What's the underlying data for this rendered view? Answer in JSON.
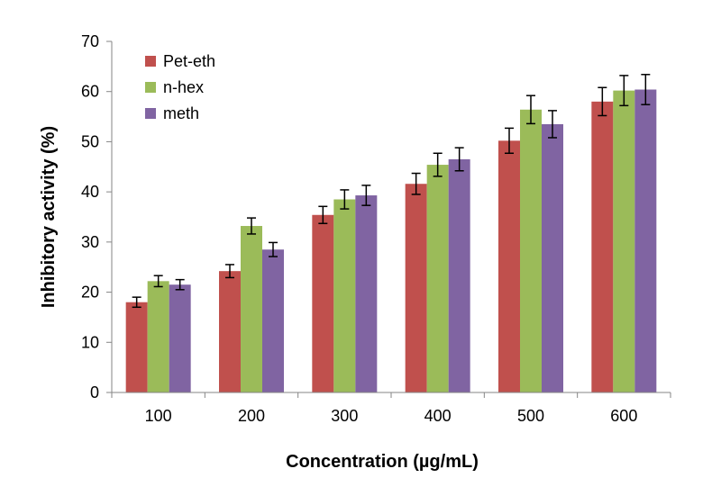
{
  "chart_data": {
    "type": "bar",
    "title": "",
    "xlabel": "Concentration (µg/mL)",
    "ylabel": "Inhibitory activity (%)",
    "ylim": [
      0,
      70
    ],
    "yticks": [
      "0",
      "10",
      "20",
      "30",
      "40",
      "50",
      "60",
      "70"
    ],
    "categories": [
      "100",
      "200",
      "300",
      "400",
      "500",
      "600"
    ],
    "grid": false,
    "legend_position": "top-left",
    "series": [
      {
        "name": "Pet-eth",
        "color": "#C0504D",
        "values": [
          18.0,
          24.2,
          35.4,
          41.6,
          50.2,
          58.0
        ],
        "errors": [
          1.0,
          1.3,
          1.7,
          2.1,
          2.5,
          2.8
        ]
      },
      {
        "name": "n-hex",
        "color": "#9BBB59",
        "values": [
          22.2,
          33.2,
          38.5,
          45.4,
          56.4,
          60.2
        ],
        "errors": [
          1.1,
          1.6,
          1.9,
          2.3,
          2.8,
          3.0
        ]
      },
      {
        "name": "meth",
        "color": "#8064A2",
        "values": [
          21.5,
          28.5,
          39.3,
          46.5,
          53.5,
          60.4
        ],
        "errors": [
          1.0,
          1.4,
          2.0,
          2.3,
          2.7,
          3.0
        ]
      }
    ]
  }
}
